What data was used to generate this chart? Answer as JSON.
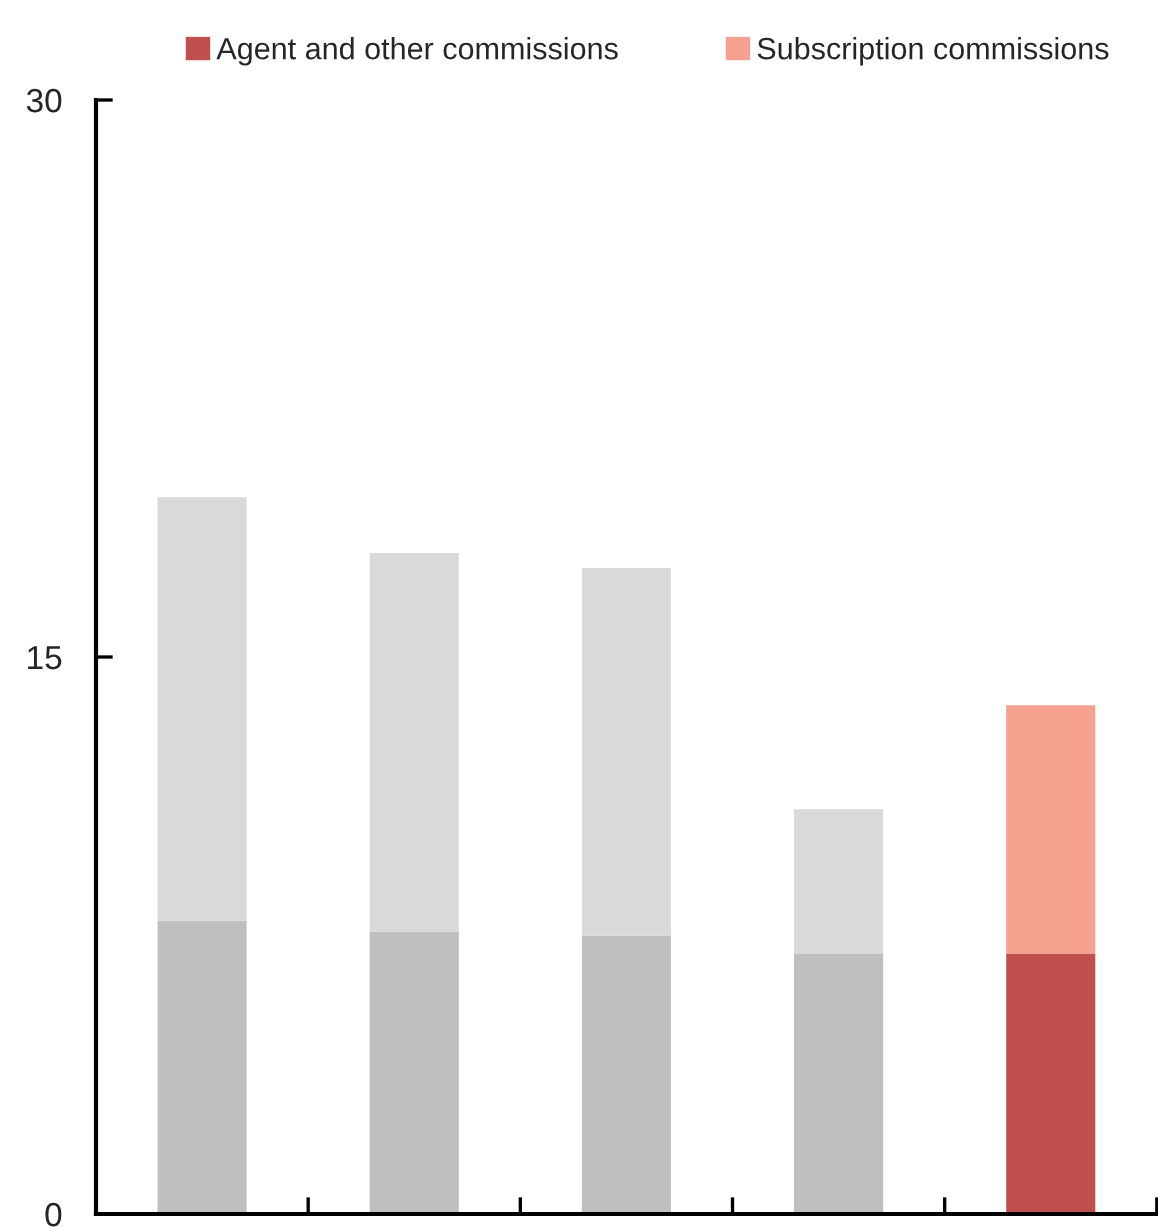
{
  "chart_data": {
    "type": "bar",
    "stacked": true,
    "categories": [
      null,
      null,
      null,
      null,
      null
    ],
    "series": [
      {
        "name": "Agent and other commissions",
        "color": "#c0504d",
        "colors": [
          "#bfbfbf",
          "#bfbfbf",
          "#bfbfbf",
          "#bfbfbf",
          "#c0504d"
        ],
        "values": [
          7.9,
          7.6,
          7.5,
          7.0,
          7.0
        ]
      },
      {
        "name": "Subscription commissions",
        "color": "#f4a18f",
        "colors": [
          "#d9d9d9",
          "#d9d9d9",
          "#d9d9d9",
          "#d9d9d9",
          "#f4a18f"
        ],
        "values": [
          11.4,
          10.2,
          9.9,
          3.9,
          6.7
        ]
      }
    ],
    "ylim": [
      0,
      30
    ],
    "yticks": [
      0,
      15,
      30
    ],
    "grid": false,
    "legend": "top"
  }
}
